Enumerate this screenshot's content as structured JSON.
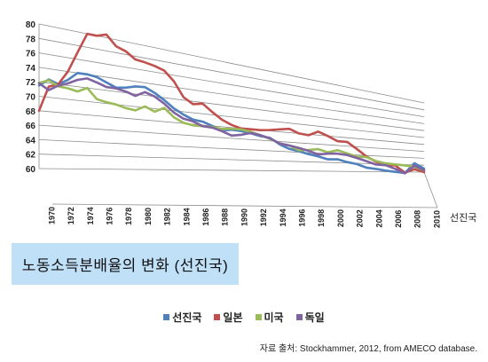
{
  "title": "노동소득분배율의 변화 (선진국)",
  "source": "자료 출처: Stockhammer, 2012, from AMECO database.",
  "depth_label": "선진국",
  "chart_data": {
    "type": "line",
    "title": "노동소득분배율의 변화 (선진국)",
    "xlabel": "",
    "ylabel": "",
    "ylim": [
      60,
      80
    ],
    "y_ticks": [
      60,
      62,
      64,
      66,
      68,
      70,
      72,
      74,
      76,
      78,
      80
    ],
    "x": [
      1970,
      1971,
      1972,
      1973,
      1974,
      1975,
      1976,
      1977,
      1978,
      1979,
      1980,
      1981,
      1982,
      1983,
      1984,
      1985,
      1986,
      1987,
      1988,
      1989,
      1990,
      1991,
      1992,
      1993,
      1994,
      1995,
      1996,
      1997,
      1998,
      1999,
      2000,
      2001,
      2002,
      2003,
      2004,
      2005,
      2006,
      2007,
      2008,
      2009,
      2010
    ],
    "x_tick_labels": [
      "1970",
      "1972",
      "1974",
      "1976",
      "1978",
      "1980",
      "1982",
      "1984",
      "1986",
      "1988",
      "1990",
      "1992",
      "1994",
      "1996",
      "1998",
      "2000",
      "2002",
      "2004",
      "2006",
      "2008",
      "2010"
    ],
    "grid": true,
    "perspective": "3d",
    "legend_position": "bottom",
    "series": [
      {
        "name": "선진국",
        "color": "#4f81bd",
        "values": [
          71.5,
          72.5,
          72.0,
          72.8,
          74.0,
          74.0,
          73.8,
          73.2,
          72.6,
          72.8,
          73.2,
          73.3,
          72.6,
          71.6,
          70.4,
          69.5,
          68.8,
          68.6,
          68.0,
          67.3,
          67.6,
          67.5,
          67.2,
          66.8,
          66.6,
          65.4,
          64.6,
          64.2,
          63.7,
          63.3,
          62.7,
          62.8,
          62.2,
          61.8,
          61.0,
          60.7,
          60.3,
          60.0,
          59.7,
          62.5,
          61.0
        ]
      },
      {
        "name": "일본",
        "color": "#c0504d",
        "values": [
          68.0,
          71.5,
          72.0,
          74.0,
          77.0,
          80.0,
          80.0,
          80.5,
          79.0,
          78.5,
          77.5,
          77.3,
          77.0,
          76.5,
          75.0,
          72.5,
          71.5,
          71.8,
          70.5,
          69.3,
          68.5,
          68.0,
          68.0,
          68.0,
          68.2,
          68.5,
          68.8,
          68.0,
          67.8,
          68.8,
          68.0,
          67.0,
          67.0,
          65.5,
          63.8,
          62.5,
          61.8,
          61.7,
          59.8,
          60.8,
          60.0
        ]
      },
      {
        "name": "미국",
        "color": "#9bbb59",
        "values": [
          71.8,
          72.4,
          71.7,
          71.6,
          71.3,
          72.0,
          70.5,
          70.2,
          70.0,
          69.6,
          69.4,
          70.2,
          69.5,
          70.3,
          68.9,
          68.1,
          67.8,
          67.8,
          67.8,
          67.6,
          67.8,
          67.8,
          67.5,
          67.0,
          66.4,
          65.6,
          65.3,
          64.4,
          64.6,
          64.9,
          64.3,
          64.9,
          64.3,
          63.6,
          63.6,
          62.7,
          62.2,
          62.0,
          61.8,
          61.5,
          60.5
        ]
      },
      {
        "name": "독일",
        "color": "#8064a2",
        "values": [
          71.8,
          71.0,
          71.8,
          72.3,
          73.0,
          73.4,
          73.0,
          72.5,
          72.5,
          72.2,
          71.7,
          72.5,
          72.0,
          71.0,
          69.7,
          68.8,
          68.5,
          67.8,
          67.7,
          67.2,
          66.5,
          66.8,
          67.3,
          67.0,
          66.5,
          65.6,
          65.3,
          64.9,
          64.4,
          63.7,
          64.0,
          64.1,
          63.9,
          63.3,
          62.6,
          61.8,
          61.7,
          60.8,
          59.6,
          61.8,
          60.5
        ]
      }
    ]
  }
}
